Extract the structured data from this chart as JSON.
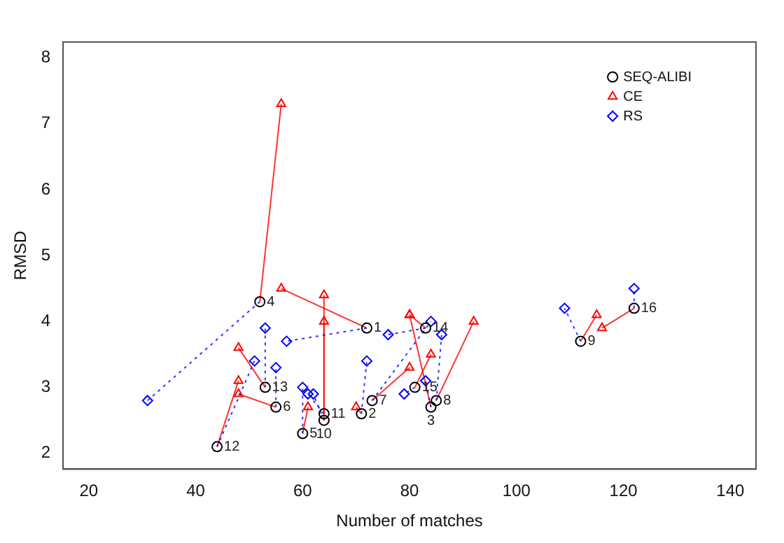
{
  "chart_data": {
    "type": "scatter",
    "xlabel": "Number of matches",
    "ylabel": "RMSD",
    "xlim": [
      15.2,
      144.8
    ],
    "xticks": [
      20,
      40,
      60,
      80,
      100,
      120,
      140
    ],
    "ylim": [
      1.76,
      8.24
    ],
    "yticks": [
      2,
      3,
      4,
      5,
      6,
      7,
      8
    ],
    "grid": false,
    "legend": "top right",
    "series": [
      {
        "name": "SEQ-ALIBI",
        "color": "#000000",
        "marker": "circle",
        "x": [
          72,
          71,
          84,
          52,
          60,
          55,
          73,
          85,
          112,
          64,
          64,
          44,
          53,
          83,
          81,
          122
        ],
        "values": [
          3.9,
          2.6,
          2.7,
          4.3,
          2.3,
          2.7,
          2.8,
          2.8,
          3.7,
          2.5,
          2.6,
          2.1,
          3.0,
          3.9,
          3.0,
          4.2
        ]
      },
      {
        "name": "CE",
        "color": "#ff0000",
        "marker": "triangle",
        "line_style": "solid",
        "x": [
          56,
          70,
          80,
          56,
          61,
          48,
          80,
          92,
          115,
          64,
          64,
          48,
          48,
          80,
          84,
          116
        ],
        "values": [
          4.5,
          2.7,
          4.1,
          7.3,
          2.7,
          2.9,
          3.3,
          4.0,
          4.1,
          4.0,
          4.4,
          3.1,
          3.6,
          4.1,
          3.5,
          3.9
        ]
      },
      {
        "name": "RS",
        "color": "#0000ff",
        "marker": "diamond",
        "line_style": "dotted",
        "x": [
          57,
          72,
          83,
          31,
          60,
          55,
          84,
          86,
          109,
          62,
          61,
          51,
          53,
          76,
          79,
          122
        ],
        "values": [
          3.7,
          3.4,
          3.1,
          2.8,
          3.0,
          3.3,
          4.0,
          3.8,
          4.2,
          2.9,
          2.9,
          3.4,
          3.9,
          3.8,
          2.9,
          4.5
        ]
      }
    ],
    "annotations": [
      {
        "text": "1",
        "x": 72,
        "y": 3.9
      },
      {
        "text": "2",
        "x": 71,
        "y": 2.6
      },
      {
        "text": "8",
        "x": 85,
        "y": 2.8
      },
      {
        "text": "3",
        "x": 84,
        "y": 2.7
      },
      {
        "text": "4",
        "x": 52,
        "y": 4.3
      },
      {
        "text": "5",
        "x": 60,
        "y": 2.3
      },
      {
        "text": "6",
        "x": 55,
        "y": 2.7
      },
      {
        "text": "7",
        "x": 73,
        "y": 2.8
      },
      {
        "text": "9",
        "x": 112,
        "y": 3.7
      },
      {
        "text": "11",
        "x": 64,
        "y": 2.6
      },
      {
        "text": "10",
        "x": 64,
        "y": 2.5
      },
      {
        "text": "12",
        "x": 44,
        "y": 2.1
      },
      {
        "text": "13",
        "x": 53,
        "y": 3.0
      },
      {
        "text": "14",
        "x": 83,
        "y": 3.9
      },
      {
        "text": "15",
        "x": 81,
        "y": 3.0
      },
      {
        "text": "16",
        "x": 122,
        "y": 4.2
      }
    ]
  }
}
